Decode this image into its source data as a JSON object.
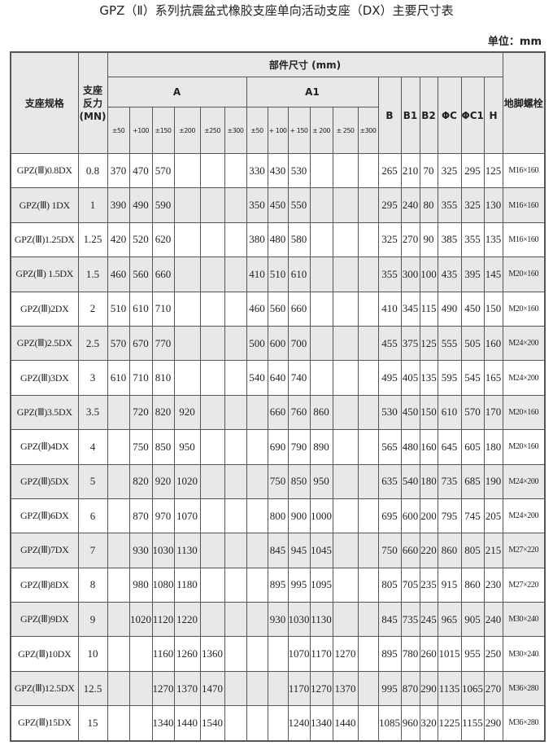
{
  "title": "GPZ（Ⅱ）系列抗震盆式橡胶支座单向活动支座（DX）主要尺寸表",
  "unit": "单位：mm",
  "headers": {
    "spec": "支座规格",
    "force": "支座\n反力\n(MN)",
    "dims": "部件尺寸 (mm)",
    "A": "A",
    "A1": "A1",
    "A_tol": [
      "±50",
      "+100",
      "±150",
      "±200",
      "±250",
      "±300"
    ],
    "A1_tol": [
      "±50",
      "+ 100",
      "+ 150",
      "± 200",
      "± 250",
      "±300"
    ],
    "B": "B",
    "B1": "B1",
    "B2": "B2",
    "PhiC": "ΦC",
    "PhiC1": "ΦC1",
    "H": "H",
    "bolt": "地脚螺栓"
  },
  "rows": [
    {
      "spec": "GPZ(Ⅲ)0.8DX",
      "force": "0.8",
      "A": [
        "370",
        "470",
        "570",
        "",
        "",
        ""
      ],
      "A1": [
        "330",
        "430",
        "530",
        "",
        "",
        ""
      ],
      "B": "265",
      "B1": "210",
      "B2": "70",
      "PhiC": "325",
      "PhiC1": "295",
      "H": "125",
      "bolt": "M16×160"
    },
    {
      "spec": "GPZ(Ⅲ) 1DX",
      "force": "1",
      "A": [
        "390",
        "490",
        "590",
        "",
        "",
        ""
      ],
      "A1": [
        "350",
        "450",
        "550",
        "",
        "",
        ""
      ],
      "B": "295",
      "B1": "240",
      "B2": "80",
      "PhiC": "355",
      "PhiC1": "325",
      "H": "130",
      "bolt": "M16×160"
    },
    {
      "spec": "GPZ(Ⅲ)1.25DX",
      "force": "1.25",
      "A": [
        "420",
        "520",
        "620",
        "",
        "",
        ""
      ],
      "A1": [
        "380",
        "480",
        "580",
        "",
        "",
        ""
      ],
      "B": "325",
      "B1": "270",
      "B2": "90",
      "PhiC": "385",
      "PhiC1": "355",
      "H": "135",
      "bolt": "M16×160"
    },
    {
      "spec": "GPZ(Ⅲ) 1.5DX",
      "force": "1.5",
      "A": [
        "460",
        "560",
        "660",
        "",
        "",
        ""
      ],
      "A1": [
        "410",
        "510",
        "610",
        "",
        "",
        ""
      ],
      "B": "355",
      "B1": "300",
      "B2": "100",
      "PhiC": "435",
      "PhiC1": "395",
      "H": "145",
      "bolt": "M20×160"
    },
    {
      "spec": "GPZ(Ⅲ)2DX",
      "force": "2",
      "A": [
        "510",
        "610",
        "710",
        "",
        "",
        ""
      ],
      "A1": [
        "460",
        "560",
        "660",
        "",
        "",
        ""
      ],
      "B": "410",
      "B1": "345",
      "B2": "115",
      "PhiC": "490",
      "PhiC1": "450",
      "H": "150",
      "bolt": "M20×160"
    },
    {
      "spec": "GPZ(Ⅲ)2.5DX",
      "force": "2.5",
      "A": [
        "570",
        "670",
        "770",
        "",
        "",
        ""
      ],
      "A1": [
        "500",
        "600",
        "700",
        "",
        "",
        ""
      ],
      "B": "455",
      "B1": "375",
      "B2": "125",
      "PhiC": "555",
      "PhiC1": "505",
      "H": "160",
      "bolt": "M24×200"
    },
    {
      "spec": "GPZ(Ⅲ)3DX",
      "force": "3",
      "A": [
        "610",
        "710",
        "810",
        "",
        "",
        ""
      ],
      "A1": [
        "540",
        "640",
        "740",
        "",
        "",
        ""
      ],
      "B": "495",
      "B1": "405",
      "B2": "135",
      "PhiC": "595",
      "PhiC1": "545",
      "H": "165",
      "bolt": "M24×200"
    },
    {
      "spec": "GPZ(Ⅲ)3.5DX",
      "force": "3.5",
      "A": [
        "",
        "720",
        "820",
        "920",
        "",
        ""
      ],
      "A1": [
        "",
        "660",
        "760",
        "860",
        "",
        ""
      ],
      "B": "530",
      "B1": "450",
      "B2": "150",
      "PhiC": "610",
      "PhiC1": "570",
      "H": "170",
      "bolt": "M20×160"
    },
    {
      "spec": "GPZ(Ⅲ)4DX",
      "force": "4",
      "A": [
        "",
        "750",
        "850",
        "950",
        "",
        ""
      ],
      "A1": [
        "",
        "690",
        "790",
        "890",
        "",
        ""
      ],
      "B": "565",
      "B1": "480",
      "B2": "160",
      "PhiC": "645",
      "PhiC1": "605",
      "H": "180",
      "bolt": "M20×160"
    },
    {
      "spec": "GPZ(Ⅲ)5DX",
      "force": "5",
      "A": [
        "",
        "820",
        "920",
        "1020",
        "",
        ""
      ],
      "A1": [
        "",
        "750",
        "850",
        "950",
        "",
        ""
      ],
      "B": "635",
      "B1": "540",
      "B2": "180",
      "PhiC": "735",
      "PhiC1": "685",
      "H": "190",
      "bolt": "M24×200"
    },
    {
      "spec": "GPZ(Ⅲ)6DX",
      "force": "6",
      "A": [
        "",
        "870",
        "970",
        "1070",
        "",
        ""
      ],
      "A1": [
        "",
        "800",
        "900",
        "1000",
        "",
        ""
      ],
      "B": "695",
      "B1": "600",
      "B2": "200",
      "PhiC": "795",
      "PhiC1": "745",
      "H": "205",
      "bolt": "M24×200"
    },
    {
      "spec": "GPZ(Ⅲ)7DX",
      "force": "7",
      "A": [
        "",
        "930",
        "1030",
        "1130",
        "",
        ""
      ],
      "A1": [
        "",
        "845",
        "945",
        "1045",
        "",
        ""
      ],
      "B": "750",
      "B1": "660",
      "B2": "220",
      "PhiC": "860",
      "PhiC1": "805",
      "H": "215",
      "bolt": "M27×220"
    },
    {
      "spec": "GPZ(Ⅲ)8DX",
      "force": "8",
      "A": [
        "",
        "980",
        "1080",
        "1180",
        "",
        ""
      ],
      "A1": [
        "",
        "895",
        "995",
        "1095",
        "",
        ""
      ],
      "B": "805",
      "B1": "705",
      "B2": "235",
      "PhiC": "915",
      "PhiC1": "860",
      "H": "230",
      "bolt": "M27×220"
    },
    {
      "spec": "GPZ(Ⅲ)9DX",
      "force": "9",
      "A": [
        "",
        "1020",
        "1120",
        "1220",
        "",
        ""
      ],
      "A1": [
        "",
        "930",
        "1030",
        "1130",
        "",
        ""
      ],
      "B": "845",
      "B1": "735",
      "B2": "245",
      "PhiC": "965",
      "PhiC1": "905",
      "H": "240",
      "bolt": "M30×240"
    },
    {
      "spec": "GPZ(Ⅲ)10DX",
      "force": "10",
      "A": [
        "",
        "",
        "1160",
        "1260",
        "1360",
        ""
      ],
      "A1": [
        "",
        "",
        "1070",
        "1170",
        "1270",
        ""
      ],
      "B": "895",
      "B1": "780",
      "B2": "260",
      "PhiC": "1015",
      "PhiC1": "955",
      "H": "250",
      "bolt": "M30×240"
    },
    {
      "spec": "GPZ(Ⅲ)12.5DX",
      "force": "12.5",
      "A": [
        "",
        "",
        "1270",
        "1370",
        "1470",
        ""
      ],
      "A1": [
        "",
        "",
        "1170",
        "1270",
        "1370",
        ""
      ],
      "B": "995",
      "B1": "870",
      "B2": "290",
      "PhiC": "1135",
      "PhiC1": "1065",
      "H": "270",
      "bolt": "M36×280"
    },
    {
      "spec": "GPZ(Ⅲ)15DX",
      "force": "15",
      "A": [
        "",
        "",
        "1340",
        "1440",
        "1540",
        ""
      ],
      "A1": [
        "",
        "",
        "1240",
        "1340",
        "1440",
        ""
      ],
      "B": "1085",
      "B1": "960",
      "B2": "320",
      "PhiC": "1225",
      "PhiC1": "1155",
      "H": "290",
      "bolt": "M36×280"
    }
  ]
}
